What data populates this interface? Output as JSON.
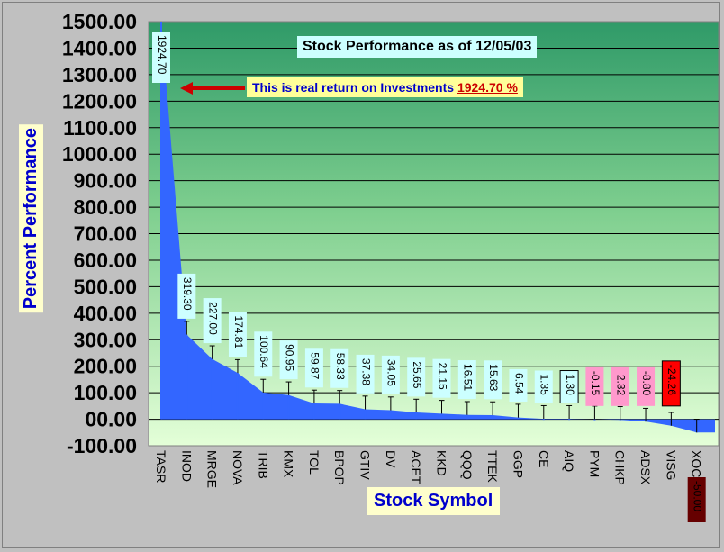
{
  "chart_data": {
    "type": "bar",
    "title": "Stock Performance as of 12/05/03",
    "xlabel": "Stock Symbol",
    "ylabel": "Percent Performance",
    "ylim": [
      -100,
      1500
    ],
    "yticks": [
      "1500.00",
      "1400.00",
      "1300.00",
      "1200.00",
      "1100.00",
      "1000.00",
      "900.00",
      "800.00",
      "700.00",
      "600.00",
      "500.00",
      "400.00",
      "300.00",
      "200.00",
      "100.00",
      "00.00",
      "-100.00"
    ],
    "categories": [
      "TASR",
      "INOD",
      "MRGE",
      "NOVA",
      "TRIB",
      "KMX",
      "TOL",
      "BPOP",
      "GTIV",
      "DV",
      "ACET",
      "KKD",
      "QQQ",
      "TTEK",
      "GGP",
      "CE",
      "AIQ",
      "PYM",
      "CHKP",
      "ADSX",
      "VISG",
      "XOCM"
    ],
    "values": [
      1924.7,
      319.3,
      227.0,
      174.81,
      100.64,
      90.95,
      59.87,
      58.33,
      37.38,
      34.05,
      25.65,
      21.15,
      16.51,
      15.63,
      6.54,
      1.35,
      1.3,
      -0.15,
      -2.32,
      -8.8,
      -24.26,
      -50.0
    ],
    "data_labels": [
      "1924.70",
      "319.30",
      "227.00",
      "174.81",
      "100.64",
      "90.95",
      "59.87",
      "58.33",
      "37.38",
      "34.05",
      "25.65",
      "21.15",
      "16.51",
      "15.63",
      "6.54",
      "1.35",
      "1.30",
      "-0.15",
      "-2.32",
      "-8.80",
      "-24.26",
      "-50.00"
    ],
    "label_styles": [
      "cyan",
      "cyan",
      "cyan",
      "cyan",
      "cyan",
      "cyan",
      "cyan",
      "cyan",
      "cyan",
      "cyan",
      "cyan",
      "cyan",
      "cyan",
      "cyan",
      "cyan",
      "cyan",
      "outline",
      "pink",
      "pink",
      "pink",
      "red",
      "dark"
    ],
    "error_bar_value": 50,
    "grid": true,
    "legend": "none",
    "annotation": {
      "text": "This is real return on Investments",
      "highlight": "1924.70 %"
    },
    "colors": {
      "bar": "#3366ff",
      "grid": "#000000",
      "plot_top": "#2f9a68",
      "plot_bottom": "#ddffd0",
      "arrow": "#cc0000"
    }
  }
}
